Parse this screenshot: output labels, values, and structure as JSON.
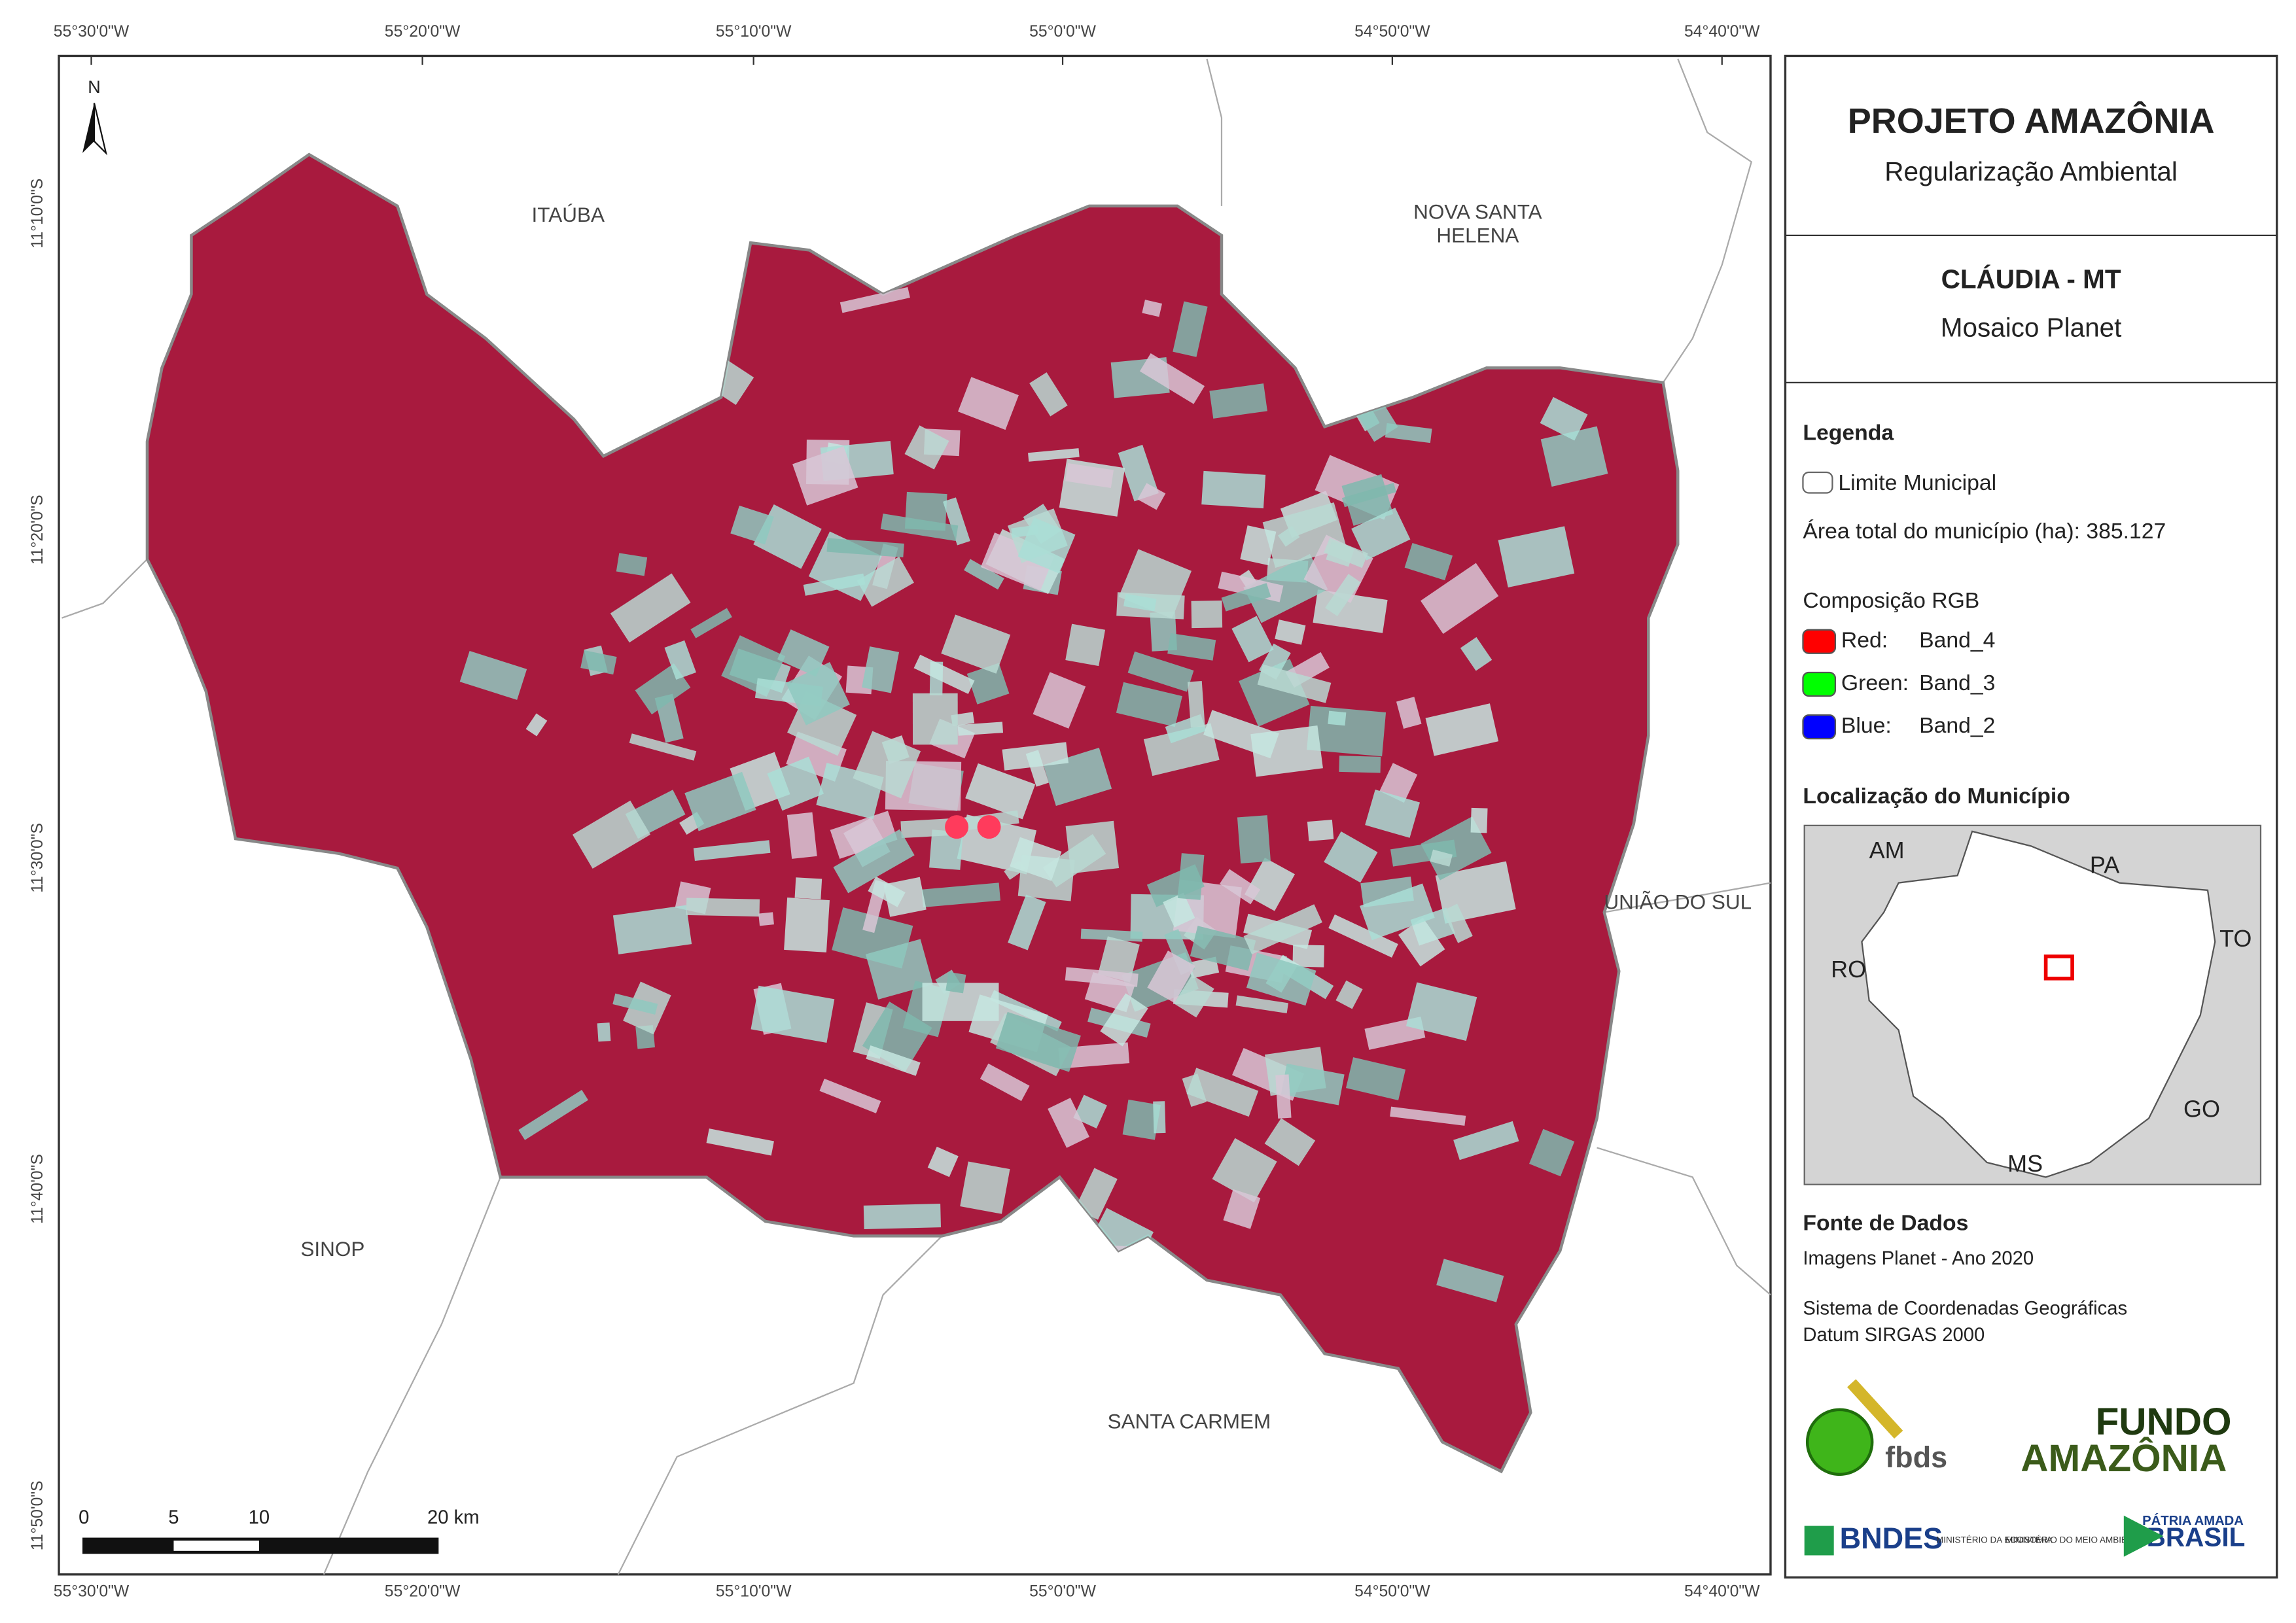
{
  "map": {
    "x_labels": [
      "55°30'0\"W",
      "55°20'0\"W",
      "55°10'0\"W",
      "55°0'0\"W",
      "54°50'0\"W",
      "54°40'0\"W"
    ],
    "y_labels": [
      "11°10'0\"S",
      "11°20'0\"S",
      "11°30'0\"S",
      "11°40'0\"S",
      "11°50'0\"S"
    ],
    "north": "N",
    "places": [
      {
        "lines": [
          "ITAÚBA"
        ]
      },
      {
        "lines": [
          "NOVA SANTA",
          "HELENA"
        ]
      },
      {
        "lines": [
          "UNIÃO DO SUL"
        ]
      },
      {
        "lines": [
          "SINOP"
        ]
      },
      {
        "lines": [
          "SANTA CARMEM"
        ]
      }
    ],
    "scale_bar": [
      "0",
      "5",
      "10",
      "20 km"
    ]
  },
  "panel": {
    "title": "PROJETO AMAZÔNIA",
    "subtitle": "Regularização Ambiental",
    "municipality": "CLÁUDIA - MT",
    "mosaic": "Mosaico Planet",
    "legend_title": "Legenda",
    "boundary": "Limite Municipal",
    "area": "Área total do município (ha): 385.127",
    "rgb_title": "Composição RGB",
    "rgb": [
      {
        "band": "Red:",
        "value": "Band_4",
        "color": "#ff0000"
      },
      {
        "band": "Green:",
        "value": "Band_3",
        "color": "#00ff00"
      },
      {
        "band": "Blue:",
        "value": "Band_2",
        "color": "#0000ff"
      }
    ],
    "location_title": "Localização do Município",
    "location_labels": [
      "AM",
      "PA",
      "TO",
      "RO",
      "GO",
      "MS"
    ],
    "sources_title": "Fonte de Dados",
    "sources": [
      "Imagens Planet - Ano 2020",
      "Sistema de Coordenadas Geográficas",
      "Datum SIRGAS 2000"
    ],
    "logos": [
      "fbds",
      "FUNDO",
      "AMAZÔNIA",
      "BNDES",
      "MINISTÉRIO DA ECONOMIA",
      "MINISTÉRIO DO MEIO AMBIENTE",
      "PÁTRIA AMADA",
      "BRASIL"
    ]
  }
}
